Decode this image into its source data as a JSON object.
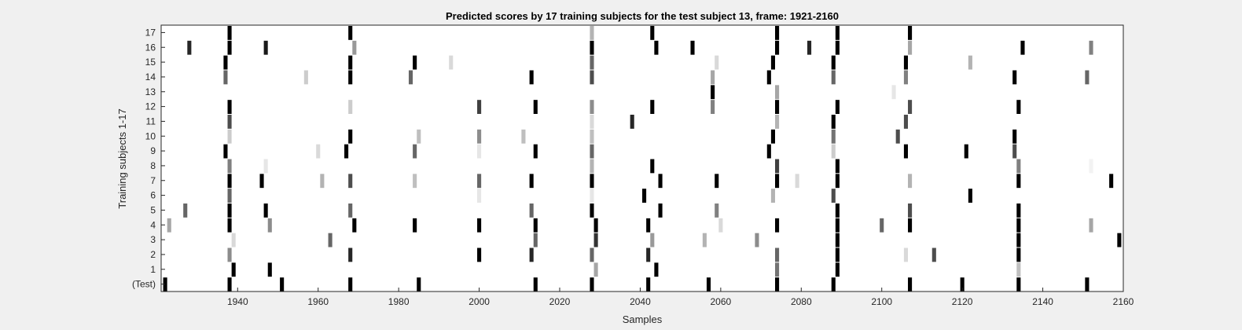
{
  "chart_data": {
    "type": "heatmap",
    "title": "Predicted scores by 17 training subjects for the test subject 13, frame: 1921-2160",
    "xlabel": "Samples",
    "ylabel": "Training subjects 1-17",
    "xlim": [
      1921,
      2160
    ],
    "xticks": [
      1940,
      1960,
      1980,
      2000,
      2020,
      2040,
      2060,
      2080,
      2100,
      2120,
      2140,
      2160
    ],
    "rows": [
      "(Test)",
      "1",
      "2",
      "3",
      "4",
      "5",
      "6",
      "7",
      "8",
      "9",
      "10",
      "11",
      "12",
      "13",
      "14",
      "15",
      "16",
      "17"
    ],
    "value_encoding": "gray level: 1 = black (high score), 0 = white",
    "grid": false,
    "marks": [
      {
        "row": 0,
        "x": 1922,
        "v": 1
      },
      {
        "row": 0,
        "x": 1938,
        "v": 1
      },
      {
        "row": 0,
        "x": 1951,
        "v": 1
      },
      {
        "row": 0,
        "x": 1968,
        "v": 1
      },
      {
        "row": 0,
        "x": 1985,
        "v": 1
      },
      {
        "row": 0,
        "x": 2014,
        "v": 1
      },
      {
        "row": 0,
        "x": 2028,
        "v": 1
      },
      {
        "row": 0,
        "x": 2042,
        "v": 1
      },
      {
        "row": 0,
        "x": 2057,
        "v": 1
      },
      {
        "row": 0,
        "x": 2074,
        "v": 1
      },
      {
        "row": 0,
        "x": 2088,
        "v": 1
      },
      {
        "row": 0,
        "x": 2107,
        "v": 1
      },
      {
        "row": 0,
        "x": 2120,
        "v": 1
      },
      {
        "row": 0,
        "x": 2134,
        "v": 1
      },
      {
        "row": 0,
        "x": 2151,
        "v": 1
      },
      {
        "row": 1,
        "x": 1939,
        "v": 1
      },
      {
        "row": 1,
        "x": 1948,
        "v": 1
      },
      {
        "row": 1,
        "x": 2029,
        "v": 0.35
      },
      {
        "row": 1,
        "x": 2044,
        "v": 1
      },
      {
        "row": 1,
        "x": 2074,
        "v": 0.55
      },
      {
        "row": 1,
        "x": 2089,
        "v": 1
      },
      {
        "row": 1,
        "x": 2134,
        "v": 0.25
      },
      {
        "row": 2,
        "x": 1938,
        "v": 0.45
      },
      {
        "row": 2,
        "x": 1968,
        "v": 0.85
      },
      {
        "row": 2,
        "x": 2000,
        "v": 1
      },
      {
        "row": 2,
        "x": 2013,
        "v": 0.85
      },
      {
        "row": 2,
        "x": 2028,
        "v": 0.6
      },
      {
        "row": 2,
        "x": 2042,
        "v": 0.85
      },
      {
        "row": 2,
        "x": 2074,
        "v": 0.6
      },
      {
        "row": 2,
        "x": 2089,
        "v": 1
      },
      {
        "row": 2,
        "x": 2106,
        "v": 0.15
      },
      {
        "row": 2,
        "x": 2113,
        "v": 0.7
      },
      {
        "row": 2,
        "x": 2134,
        "v": 1
      },
      {
        "row": 3,
        "x": 1939,
        "v": 0.15
      },
      {
        "row": 3,
        "x": 1963,
        "v": 0.6
      },
      {
        "row": 3,
        "x": 2014,
        "v": 0.6
      },
      {
        "row": 3,
        "x": 2029,
        "v": 0.8
      },
      {
        "row": 3,
        "x": 2043,
        "v": 0.4
      },
      {
        "row": 3,
        "x": 2056,
        "v": 0.3
      },
      {
        "row": 3,
        "x": 2069,
        "v": 0.45
      },
      {
        "row": 3,
        "x": 2089,
        "v": 1
      },
      {
        "row": 3,
        "x": 2134,
        "v": 1
      },
      {
        "row": 3,
        "x": 2159,
        "v": 1
      },
      {
        "row": 4,
        "x": 1923,
        "v": 0.35
      },
      {
        "row": 4,
        "x": 1938,
        "v": 1
      },
      {
        "row": 4,
        "x": 1948,
        "v": 0.45
      },
      {
        "row": 4,
        "x": 1969,
        "v": 1
      },
      {
        "row": 4,
        "x": 1984,
        "v": 1
      },
      {
        "row": 4,
        "x": 2000,
        "v": 1
      },
      {
        "row": 4,
        "x": 2014,
        "v": 1
      },
      {
        "row": 4,
        "x": 2029,
        "v": 1
      },
      {
        "row": 4,
        "x": 2042,
        "v": 1
      },
      {
        "row": 4,
        "x": 2060,
        "v": 0.15
      },
      {
        "row": 4,
        "x": 2074,
        "v": 1
      },
      {
        "row": 4,
        "x": 2089,
        "v": 1
      },
      {
        "row": 4,
        "x": 2100,
        "v": 0.6
      },
      {
        "row": 4,
        "x": 2107,
        "v": 1
      },
      {
        "row": 4,
        "x": 2134,
        "v": 1
      },
      {
        "row": 4,
        "x": 2152,
        "v": 0.35
      },
      {
        "row": 5,
        "x": 1927,
        "v": 0.6
      },
      {
        "row": 5,
        "x": 1938,
        "v": 1
      },
      {
        "row": 5,
        "x": 1947,
        "v": 1
      },
      {
        "row": 5,
        "x": 1968,
        "v": 0.6
      },
      {
        "row": 5,
        "x": 2013,
        "v": 0.6
      },
      {
        "row": 5,
        "x": 2028,
        "v": 1
      },
      {
        "row": 5,
        "x": 2045,
        "v": 1
      },
      {
        "row": 5,
        "x": 2059,
        "v": 0.5
      },
      {
        "row": 5,
        "x": 2089,
        "v": 1
      },
      {
        "row": 5,
        "x": 2107,
        "v": 0.7
      },
      {
        "row": 5,
        "x": 2134,
        "v": 1
      },
      {
        "row": 6,
        "x": 1938,
        "v": 0.6
      },
      {
        "row": 6,
        "x": 2000,
        "v": 0.1
      },
      {
        "row": 6,
        "x": 2028,
        "v": 0.1
      },
      {
        "row": 6,
        "x": 2041,
        "v": 1
      },
      {
        "row": 6,
        "x": 2073,
        "v": 0.3
      },
      {
        "row": 6,
        "x": 2088,
        "v": 0.7
      },
      {
        "row": 6,
        "x": 2122,
        "v": 1
      },
      {
        "row": 7,
        "x": 1938,
        "v": 1
      },
      {
        "row": 7,
        "x": 1946,
        "v": 1
      },
      {
        "row": 7,
        "x": 1961,
        "v": 0.3
      },
      {
        "row": 7,
        "x": 1968,
        "v": 0.7
      },
      {
        "row": 7,
        "x": 1984,
        "v": 0.25
      },
      {
        "row": 7,
        "x": 2000,
        "v": 0.6
      },
      {
        "row": 7,
        "x": 2013,
        "v": 1
      },
      {
        "row": 7,
        "x": 2028,
        "v": 1
      },
      {
        "row": 7,
        "x": 2045,
        "v": 1
      },
      {
        "row": 7,
        "x": 2059,
        "v": 1
      },
      {
        "row": 7,
        "x": 2074,
        "v": 1
      },
      {
        "row": 7,
        "x": 2079,
        "v": 0.15
      },
      {
        "row": 7,
        "x": 2089,
        "v": 1
      },
      {
        "row": 7,
        "x": 2107,
        "v": 0.3
      },
      {
        "row": 7,
        "x": 2134,
        "v": 1
      },
      {
        "row": 7,
        "x": 2157,
        "v": 1
      },
      {
        "row": 8,
        "x": 1938,
        "v": 0.5
      },
      {
        "row": 8,
        "x": 1947,
        "v": 0.1
      },
      {
        "row": 8,
        "x": 2028,
        "v": 0.3
      },
      {
        "row": 8,
        "x": 2043,
        "v": 1
      },
      {
        "row": 8,
        "x": 2074,
        "v": 0.75
      },
      {
        "row": 8,
        "x": 2089,
        "v": 1
      },
      {
        "row": 8,
        "x": 2134,
        "v": 0.5
      },
      {
        "row": 8,
        "x": 2152,
        "v": 0.05
      },
      {
        "row": 9,
        "x": 1937,
        "v": 1
      },
      {
        "row": 9,
        "x": 1960,
        "v": 0.15
      },
      {
        "row": 9,
        "x": 1967,
        "v": 1
      },
      {
        "row": 9,
        "x": 1984,
        "v": 0.6
      },
      {
        "row": 9,
        "x": 2000,
        "v": 0.1
      },
      {
        "row": 9,
        "x": 2014,
        "v": 1
      },
      {
        "row": 9,
        "x": 2028,
        "v": 0.6
      },
      {
        "row": 9,
        "x": 2072,
        "v": 1
      },
      {
        "row": 9,
        "x": 2088,
        "v": 0.2
      },
      {
        "row": 9,
        "x": 2106,
        "v": 1
      },
      {
        "row": 9,
        "x": 2121,
        "v": 1
      },
      {
        "row": 9,
        "x": 2133,
        "v": 0.7
      },
      {
        "row": 10,
        "x": 1938,
        "v": 0.2
      },
      {
        "row": 10,
        "x": 1968,
        "v": 1
      },
      {
        "row": 10,
        "x": 1985,
        "v": 0.25
      },
      {
        "row": 10,
        "x": 2000,
        "v": 0.45
      },
      {
        "row": 10,
        "x": 2011,
        "v": 0.25
      },
      {
        "row": 10,
        "x": 2028,
        "v": 0.25
      },
      {
        "row": 10,
        "x": 2073,
        "v": 1
      },
      {
        "row": 10,
        "x": 2088,
        "v": 0.55
      },
      {
        "row": 10,
        "x": 2104,
        "v": 0.7
      },
      {
        "row": 10,
        "x": 2133,
        "v": 1
      },
      {
        "row": 11,
        "x": 1938,
        "v": 0.7
      },
      {
        "row": 11,
        "x": 2028,
        "v": 0.15
      },
      {
        "row": 11,
        "x": 2038,
        "v": 0.85
      },
      {
        "row": 11,
        "x": 2074,
        "v": 0.3
      },
      {
        "row": 11,
        "x": 2088,
        "v": 1
      },
      {
        "row": 11,
        "x": 2106,
        "v": 0.7
      },
      {
        "row": 12,
        "x": 1938,
        "v": 1
      },
      {
        "row": 12,
        "x": 1968,
        "v": 0.2
      },
      {
        "row": 12,
        "x": 2000,
        "v": 0.75
      },
      {
        "row": 12,
        "x": 2014,
        "v": 1
      },
      {
        "row": 12,
        "x": 2028,
        "v": 0.45
      },
      {
        "row": 12,
        "x": 2043,
        "v": 1
      },
      {
        "row": 12,
        "x": 2058,
        "v": 0.5
      },
      {
        "row": 12,
        "x": 2074,
        "v": 1
      },
      {
        "row": 12,
        "x": 2089,
        "v": 1
      },
      {
        "row": 12,
        "x": 2107,
        "v": 0.7
      },
      {
        "row": 12,
        "x": 2134,
        "v": 1
      },
      {
        "row": 13,
        "x": 2058,
        "v": 1
      },
      {
        "row": 13,
        "x": 2074,
        "v": 0.35
      },
      {
        "row": 13,
        "x": 2103,
        "v": 0.1
      },
      {
        "row": 14,
        "x": 1937,
        "v": 0.6
      },
      {
        "row": 14,
        "x": 1957,
        "v": 0.2
      },
      {
        "row": 14,
        "x": 1968,
        "v": 1
      },
      {
        "row": 14,
        "x": 1983,
        "v": 0.6
      },
      {
        "row": 14,
        "x": 2013,
        "v": 1
      },
      {
        "row": 14,
        "x": 2028,
        "v": 0.7
      },
      {
        "row": 14,
        "x": 2058,
        "v": 0.35
      },
      {
        "row": 14,
        "x": 2072,
        "v": 1
      },
      {
        "row": 14,
        "x": 2088,
        "v": 0.6
      },
      {
        "row": 14,
        "x": 2106,
        "v": 0.5
      },
      {
        "row": 14,
        "x": 2133,
        "v": 1
      },
      {
        "row": 14,
        "x": 2151,
        "v": 0.6
      },
      {
        "row": 15,
        "x": 1937,
        "v": 1
      },
      {
        "row": 15,
        "x": 1968,
        "v": 1
      },
      {
        "row": 15,
        "x": 1984,
        "v": 1
      },
      {
        "row": 15,
        "x": 1993,
        "v": 0.15
      },
      {
        "row": 15,
        "x": 2028,
        "v": 0.6
      },
      {
        "row": 15,
        "x": 2059,
        "v": 0.15
      },
      {
        "row": 15,
        "x": 2073,
        "v": 1
      },
      {
        "row": 15,
        "x": 2088,
        "v": 1
      },
      {
        "row": 15,
        "x": 2106,
        "v": 1
      },
      {
        "row": 15,
        "x": 2122,
        "v": 0.3
      },
      {
        "row": 16,
        "x": 1928,
        "v": 0.85
      },
      {
        "row": 16,
        "x": 1938,
        "v": 1
      },
      {
        "row": 16,
        "x": 1947,
        "v": 0.9
      },
      {
        "row": 16,
        "x": 1969,
        "v": 0.4
      },
      {
        "row": 16,
        "x": 2028,
        "v": 1
      },
      {
        "row": 16,
        "x": 2044,
        "v": 1
      },
      {
        "row": 16,
        "x": 2053,
        "v": 1
      },
      {
        "row": 16,
        "x": 2074,
        "v": 1
      },
      {
        "row": 16,
        "x": 2082,
        "v": 0.85
      },
      {
        "row": 16,
        "x": 2089,
        "v": 1
      },
      {
        "row": 16,
        "x": 2107,
        "v": 0.35
      },
      {
        "row": 16,
        "x": 2135,
        "v": 1
      },
      {
        "row": 16,
        "x": 2152,
        "v": 0.5
      },
      {
        "row": 17,
        "x": 1938,
        "v": 1
      },
      {
        "row": 17,
        "x": 1968,
        "v": 1
      },
      {
        "row": 17,
        "x": 2028,
        "v": 0.3
      },
      {
        "row": 17,
        "x": 2043,
        "v": 1
      },
      {
        "row": 17,
        "x": 2074,
        "v": 1
      },
      {
        "row": 17,
        "x": 2089,
        "v": 1
      },
      {
        "row": 17,
        "x": 2107,
        "v": 1
      }
    ]
  }
}
